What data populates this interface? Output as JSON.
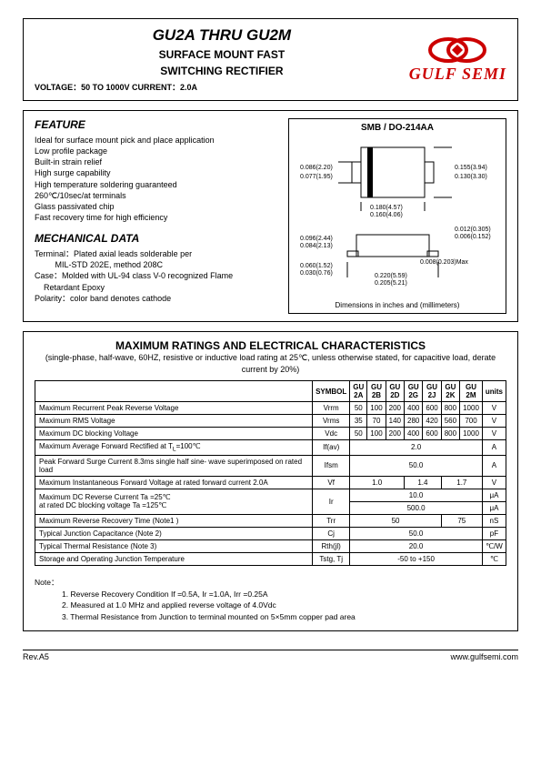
{
  "header": {
    "title": "GU2A  THRU  GU2M",
    "subtitle1": "SURFACE  MOUNT  FAST",
    "subtitle2": "SWITCHING  RECTIFIER",
    "spec": "VOLTAGE：50 TO 1000V              CURRENT：2.0A",
    "logo_text": "GULF SEMI",
    "logo_color": "#cc0000"
  },
  "feature": {
    "title": "FEATURE",
    "lines": [
      "Ideal for surface mount pick and place application",
      "Low profile package",
      "Built-in strain relief",
      "High surge capability",
      "High temperature soldering guaranteed",
      "260℃/10sec/at terminals",
      "Glass passivated chip",
      "Fast recovery time for high efficiency"
    ]
  },
  "mechanical": {
    "title": "MECHANICAL DATA",
    "lines": [
      "Terminal：Plated axial leads solderable per",
      "         MIL-STD 202E, method 208C",
      "Case：Molded with UL-94 class V-0 recognized Flame",
      "    Retardant Epoxy",
      "Polarity：color band denotes cathode"
    ]
  },
  "package": {
    "title": "SMB / DO-214AA",
    "footer": "Dimensions in inches and (millimeters)",
    "dims": {
      "d1": "0.086(2.20)",
      "d2": "0.077(1.95)",
      "d3": "0.155(3.94)",
      "d4": "0.130(3.30)",
      "d5": "0.180(4.57)",
      "d6": "0.160(4.06)",
      "d7": "0.012(0.305)",
      "d8": "0.006(0.152)",
      "d9": "0.096(2.44)",
      "d10": "0.084(2.13)",
      "d11": "0.060(1.52)",
      "d12": "0.030(0.76)",
      "d13": "0.220(5.59)",
      "d14": "0.205(5.21)",
      "d15": "0.008(0.203)Max"
    }
  },
  "ratings": {
    "title": "MAXIMUM  RATINGS  AND  ELECTRICAL  CHARACTERISTICS",
    "subtitle": "(single-phase, half-wave, 60HZ, resistive or inductive load rating at 25℃, unless otherwise stated, for capacitive load, derate current by 20%)",
    "columns": [
      "",
      "SYMBOL",
      "GU 2A",
      "GU 2B",
      "GU 2D",
      "GU 2G",
      "GU 2J",
      "GU 2K",
      "GU 2M",
      "units"
    ],
    "rows": [
      {
        "name": "Maximum Recurrent Peak Reverse Voltage",
        "sym": "Vrrm",
        "vals": [
          "50",
          "100",
          "200",
          "400",
          "600",
          "800",
          "1000"
        ],
        "unit": "V"
      },
      {
        "name": "Maximum RMS Voltage",
        "sym": "Vrms",
        "vals": [
          "35",
          "70",
          "140",
          "280",
          "420",
          "560",
          "700"
        ],
        "unit": "V"
      },
      {
        "name": "Maximum DC blocking Voltage",
        "sym": "Vdc",
        "vals": [
          "50",
          "100",
          "200",
          "400",
          "600",
          "800",
          "1000"
        ],
        "unit": "V"
      }
    ],
    "span_rows": [
      {
        "name": "Maximum Average Forward Rectified at T<sub>L</sub>=100℃",
        "sym": "If(av)",
        "val": "2.0",
        "unit": "A"
      },
      {
        "name": "Peak Forward Surge Current 8.3ms single half sine- wave superimposed on rated load",
        "sym": "Ifsm",
        "val": "50.0",
        "unit": "A"
      }
    ],
    "vf_row": {
      "name": "Maximum Instantaneous Forward Voltage at rated forward current  2.0A",
      "sym": "Vf",
      "v1": "1.0",
      "v2": "1.4",
      "v3": "1.7",
      "unit": "V"
    },
    "ir_row": {
      "name": "Maximum DC Reverse Current      Ta =25℃<br>at rated DC blocking voltage      Ta =125℃",
      "sym": "Ir",
      "v1": "10.0",
      "v2": "500.0",
      "unit": "μA"
    },
    "trr_row": {
      "name": "Maximum Reverse Recovery Time    (Note1 )",
      "sym": "Trr",
      "v1": "50",
      "v2": "75",
      "unit": "nS"
    },
    "cj_row": {
      "name": "Typical Junction Capacitance           (Note 2)",
      "sym": "Cj",
      "val": "50.0",
      "unit": "pF"
    },
    "rth_row": {
      "name": "Typical Thermal Resistance              (Note 3)",
      "sym": "Rth(jl)",
      "val": "20.0",
      "unit": "℃/W"
    },
    "tstg_row": {
      "name": "Storage and Operating Junction Temperature",
      "sym": "Tstg, Tj",
      "val": "-50 to +150",
      "unit": "℃"
    }
  },
  "notes": {
    "title": "Note：",
    "lines": [
      "1. Reverse Recovery Condition If =0.5A, Ir =1.0A, Irr =0.25A",
      "2. Measured at 1.0 MHz and applied reverse voltage of 4.0Vdc",
      "3. Thermal Resistance from Junction to terminal mounted on 5×5mm copper pad area"
    ]
  },
  "footer": {
    "left": "Rev.A5",
    "right": "www.gulfsemi.com"
  }
}
